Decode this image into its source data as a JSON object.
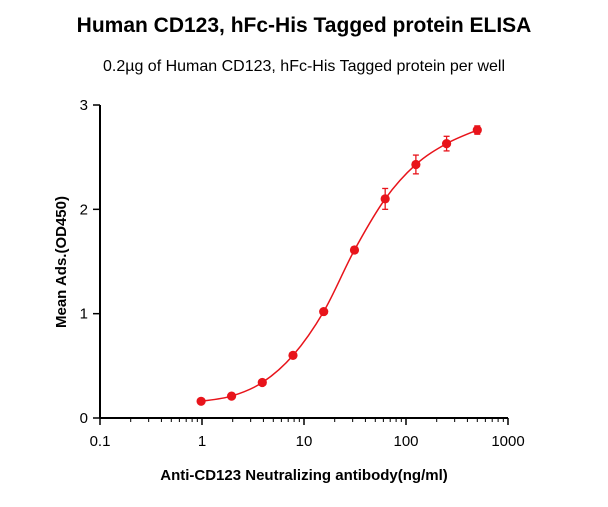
{
  "chart_data": {
    "type": "scatter",
    "title": "Human CD123,  hFc-His Tagged protein ELISA",
    "subtitle": "0.2µg of Human CD123, hFc-His Tagged protein per well",
    "xlabel": "Anti-CD123 Neutralizing antibody(ng/ml)",
    "ylabel": "Mean Ads.(OD450)",
    "x_scale": "log",
    "xlim": [
      0.1,
      1000
    ],
    "ylim": [
      0,
      3
    ],
    "x_ticks": [
      "0.1",
      "1",
      "10",
      "100",
      "1000"
    ],
    "y_ticks": [
      "0",
      "1",
      "2",
      "3"
    ],
    "grid": false,
    "series": [
      {
        "color": "#e8141b",
        "fit": "4PL sigmoidal curve",
        "x": [
          0.98,
          1.95,
          3.9,
          7.8,
          15.6,
          31.25,
          62.5,
          125,
          250,
          500
        ],
        "y": [
          0.16,
          0.21,
          0.34,
          0.6,
          1.02,
          1.61,
          2.1,
          2.43,
          2.63,
          2.76
        ],
        "err": [
          0.01,
          0.01,
          0.01,
          0.02,
          0.02,
          0.03,
          0.1,
          0.09,
          0.07,
          0.04
        ]
      }
    ]
  }
}
